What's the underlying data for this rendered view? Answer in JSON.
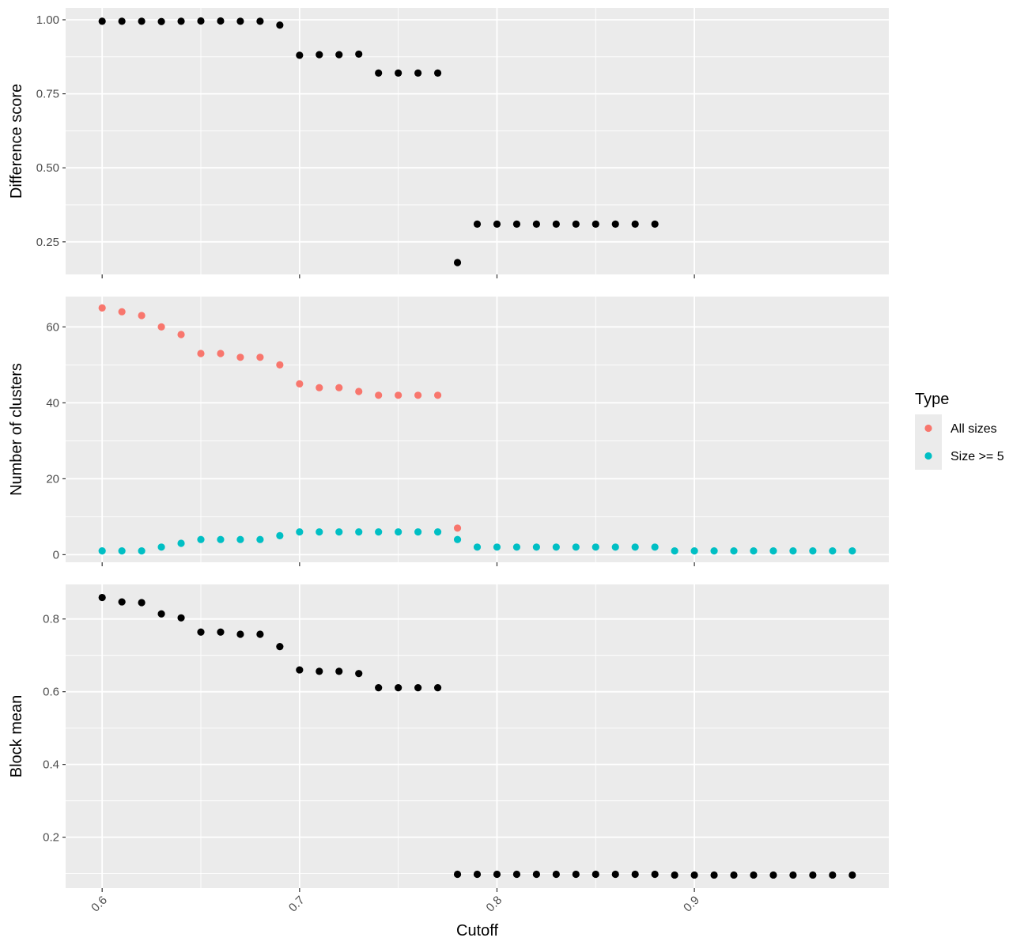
{
  "chart_data": {
    "type": "scatter",
    "xlabel": "Cutoff",
    "x_ticks": [
      0.6,
      0.7,
      0.8,
      0.9
    ],
    "x_tick_labels": [
      "0.6",
      "0.7",
      "0.8",
      "0.9"
    ],
    "xlim": [
      0.5815,
      0.9985
    ],
    "grid": true,
    "panel_background": "#ebebeb",
    "legend": {
      "title": "Type",
      "position": "right",
      "entries": [
        {
          "label": "All sizes",
          "color": "#f8766d"
        },
        {
          "label": "Size >= 5",
          "color": "#00bfc4"
        }
      ]
    },
    "panels": [
      {
        "ylabel": "Difference score",
        "ylim": [
          0.14,
          1.04
        ],
        "y_ticks": [
          0.25,
          0.5,
          0.75,
          1.0
        ],
        "y_tick_labels": [
          "0.25",
          "0.50",
          "0.75",
          "1.00"
        ],
        "series": [
          {
            "color": "#000000",
            "x": [
              0.6,
              0.61,
              0.62,
              0.63,
              0.64,
              0.65,
              0.66,
              0.67,
              0.68,
              0.69,
              0.7,
              0.71,
              0.72,
              0.73,
              0.74,
              0.75,
              0.76,
              0.77,
              0.78,
              0.79,
              0.8,
              0.81,
              0.82,
              0.83,
              0.84,
              0.85,
              0.86,
              0.87,
              0.88
            ],
            "y": [
              0.995,
              0.995,
              0.995,
              0.994,
              0.995,
              0.996,
              0.996,
              0.995,
              0.995,
              0.982,
              0.88,
              0.882,
              0.882,
              0.884,
              0.82,
              0.82,
              0.82,
              0.82,
              0.18,
              0.31,
              0.31,
              0.31,
              0.31,
              0.31,
              0.31,
              0.31,
              0.31,
              0.31,
              0.31
            ]
          }
        ]
      },
      {
        "ylabel": "Number of clusters",
        "ylim": [
          -2,
          68
        ],
        "y_ticks": [
          0,
          20,
          40,
          60
        ],
        "y_tick_labels": [
          "0",
          "20",
          "40",
          "60"
        ],
        "series": [
          {
            "name": "All sizes",
            "color": "#f8766d",
            "x": [
              0.6,
              0.61,
              0.62,
              0.63,
              0.64,
              0.65,
              0.66,
              0.67,
              0.68,
              0.69,
              0.7,
              0.71,
              0.72,
              0.73,
              0.74,
              0.75,
              0.76,
              0.77,
              0.78
            ],
            "y": [
              65,
              64,
              63,
              60,
              58,
              53,
              53,
              52,
              52,
              50,
              45,
              44,
              44,
              43,
              42,
              42,
              42,
              42,
              7
            ]
          },
          {
            "name": "Size >= 5",
            "color": "#00bfc4",
            "x": [
              0.6,
              0.61,
              0.62,
              0.63,
              0.64,
              0.65,
              0.66,
              0.67,
              0.68,
              0.69,
              0.7,
              0.71,
              0.72,
              0.73,
              0.74,
              0.75,
              0.76,
              0.77,
              0.78,
              0.79,
              0.8,
              0.81,
              0.82,
              0.83,
              0.84,
              0.85,
              0.86,
              0.87,
              0.88,
              0.89,
              0.9,
              0.91,
              0.92,
              0.93,
              0.94,
              0.95,
              0.96,
              0.97,
              0.98
            ],
            "y": [
              1,
              1,
              1,
              2,
              3,
              4,
              4,
              4,
              4,
              5,
              6,
              6,
              6,
              6,
              6,
              6,
              6,
              6,
              4,
              2,
              2,
              2,
              2,
              2,
              2,
              2,
              2,
              2,
              2,
              1,
              1,
              1,
              1,
              1,
              1,
              1,
              1,
              1,
              1
            ]
          }
        ]
      },
      {
        "ylabel": "Block mean",
        "ylim": [
          0.06,
          0.895
        ],
        "y_ticks": [
          0.2,
          0.4,
          0.6,
          0.8
        ],
        "y_tick_labels": [
          "0.2",
          "0.4",
          "0.6",
          "0.8"
        ],
        "series": [
          {
            "color": "#000000",
            "x": [
              0.6,
              0.61,
              0.62,
              0.63,
              0.64,
              0.65,
              0.66,
              0.67,
              0.68,
              0.69,
              0.7,
              0.71,
              0.72,
              0.73,
              0.74,
              0.75,
              0.76,
              0.77,
              0.78,
              0.79,
              0.8,
              0.81,
              0.82,
              0.83,
              0.84,
              0.85,
              0.86,
              0.87,
              0.88,
              0.89,
              0.9,
              0.91,
              0.92,
              0.93,
              0.94,
              0.95,
              0.96,
              0.97,
              0.98
            ],
            "y": [
              0.859,
              0.847,
              0.845,
              0.814,
              0.803,
              0.764,
              0.764,
              0.758,
              0.758,
              0.724,
              0.66,
              0.656,
              0.656,
              0.65,
              0.611,
              0.611,
              0.611,
              0.611,
              0.098,
              0.098,
              0.098,
              0.098,
              0.098,
              0.098,
              0.098,
              0.098,
              0.098,
              0.098,
              0.098,
              0.096,
              0.096,
              0.096,
              0.096,
              0.096,
              0.096,
              0.096,
              0.096,
              0.096,
              0.096
            ]
          }
        ]
      }
    ]
  }
}
